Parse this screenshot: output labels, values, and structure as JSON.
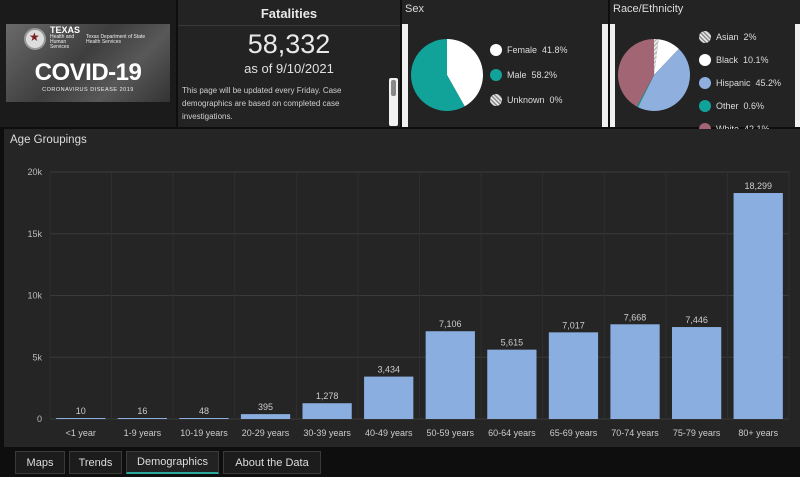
{
  "logo": {
    "org_name": "TEXAS",
    "org_sub": "Health and Human Services",
    "dept": "Texas Department of State Health Services",
    "title": "COVID-19",
    "subtitle": "CORONAVIRUS DISEASE 2019"
  },
  "fatalities": {
    "title": "Fatalities",
    "count": "58,332",
    "date": "as of 9/10/2021",
    "note": "This page will be updated every Friday. Case demographics are based on completed case investigations."
  },
  "sex": {
    "title": "Sex",
    "items": [
      {
        "label": "Female",
        "value": "41.8%",
        "pct": 41.8,
        "color": "#ffffff"
      },
      {
        "label": "Male",
        "value": "58.2%",
        "pct": 58.2,
        "color": "#11a39a"
      },
      {
        "label": "Unknown",
        "value": "0%",
        "pct": 0,
        "color": "#cfcfcf",
        "pattern": "hatch"
      }
    ]
  },
  "race": {
    "title": "Race/Ethnicity",
    "items": [
      {
        "label": "Asian",
        "value": "2%",
        "pct": 2,
        "color": "#d0d0d0",
        "pattern": "hatch"
      },
      {
        "label": "Black",
        "value": "10.1%",
        "pct": 10.1,
        "color": "#ffffff"
      },
      {
        "label": "Hispanic",
        "value": "45.2%",
        "pct": 45.2,
        "color": "#8fb0de"
      },
      {
        "label": "Other",
        "value": "0.6%",
        "pct": 0.6,
        "color": "#11a39a"
      },
      {
        "label": "White",
        "value": "42.1%",
        "pct": 42.1,
        "color": "#a26574"
      }
    ]
  },
  "chart_data": {
    "type": "bar",
    "title": "Age Groupings",
    "categories": [
      "<1 year",
      "1-9 years",
      "10-19 years",
      "20-29 years",
      "30-39 years",
      "40-49 years",
      "50-59 years",
      "60-64 years",
      "65-69 years",
      "70-74 years",
      "75-79 years",
      "80+ years"
    ],
    "values": [
      10,
      16,
      48,
      395,
      1278,
      3434,
      7106,
      5615,
      7017,
      7668,
      7446,
      18299
    ],
    "value_labels": [
      "10",
      "16",
      "48",
      "395",
      "1,278",
      "3,434",
      "7,106",
      "5,615",
      "7,017",
      "7,668",
      "7,446",
      "18,299"
    ],
    "yticks": [
      0,
      5000,
      10000,
      15000,
      20000
    ],
    "ytick_labels": [
      "0",
      "5k",
      "10k",
      "15k",
      "20k"
    ],
    "ylim": [
      0,
      20000
    ],
    "grid": true,
    "bar_color": "#8aaee0"
  },
  "tabs": [
    {
      "label": "Maps",
      "active": false
    },
    {
      "label": "Trends",
      "active": false
    },
    {
      "label": "Demographics",
      "active": true
    },
    {
      "label": "About the Data",
      "active": false
    }
  ]
}
